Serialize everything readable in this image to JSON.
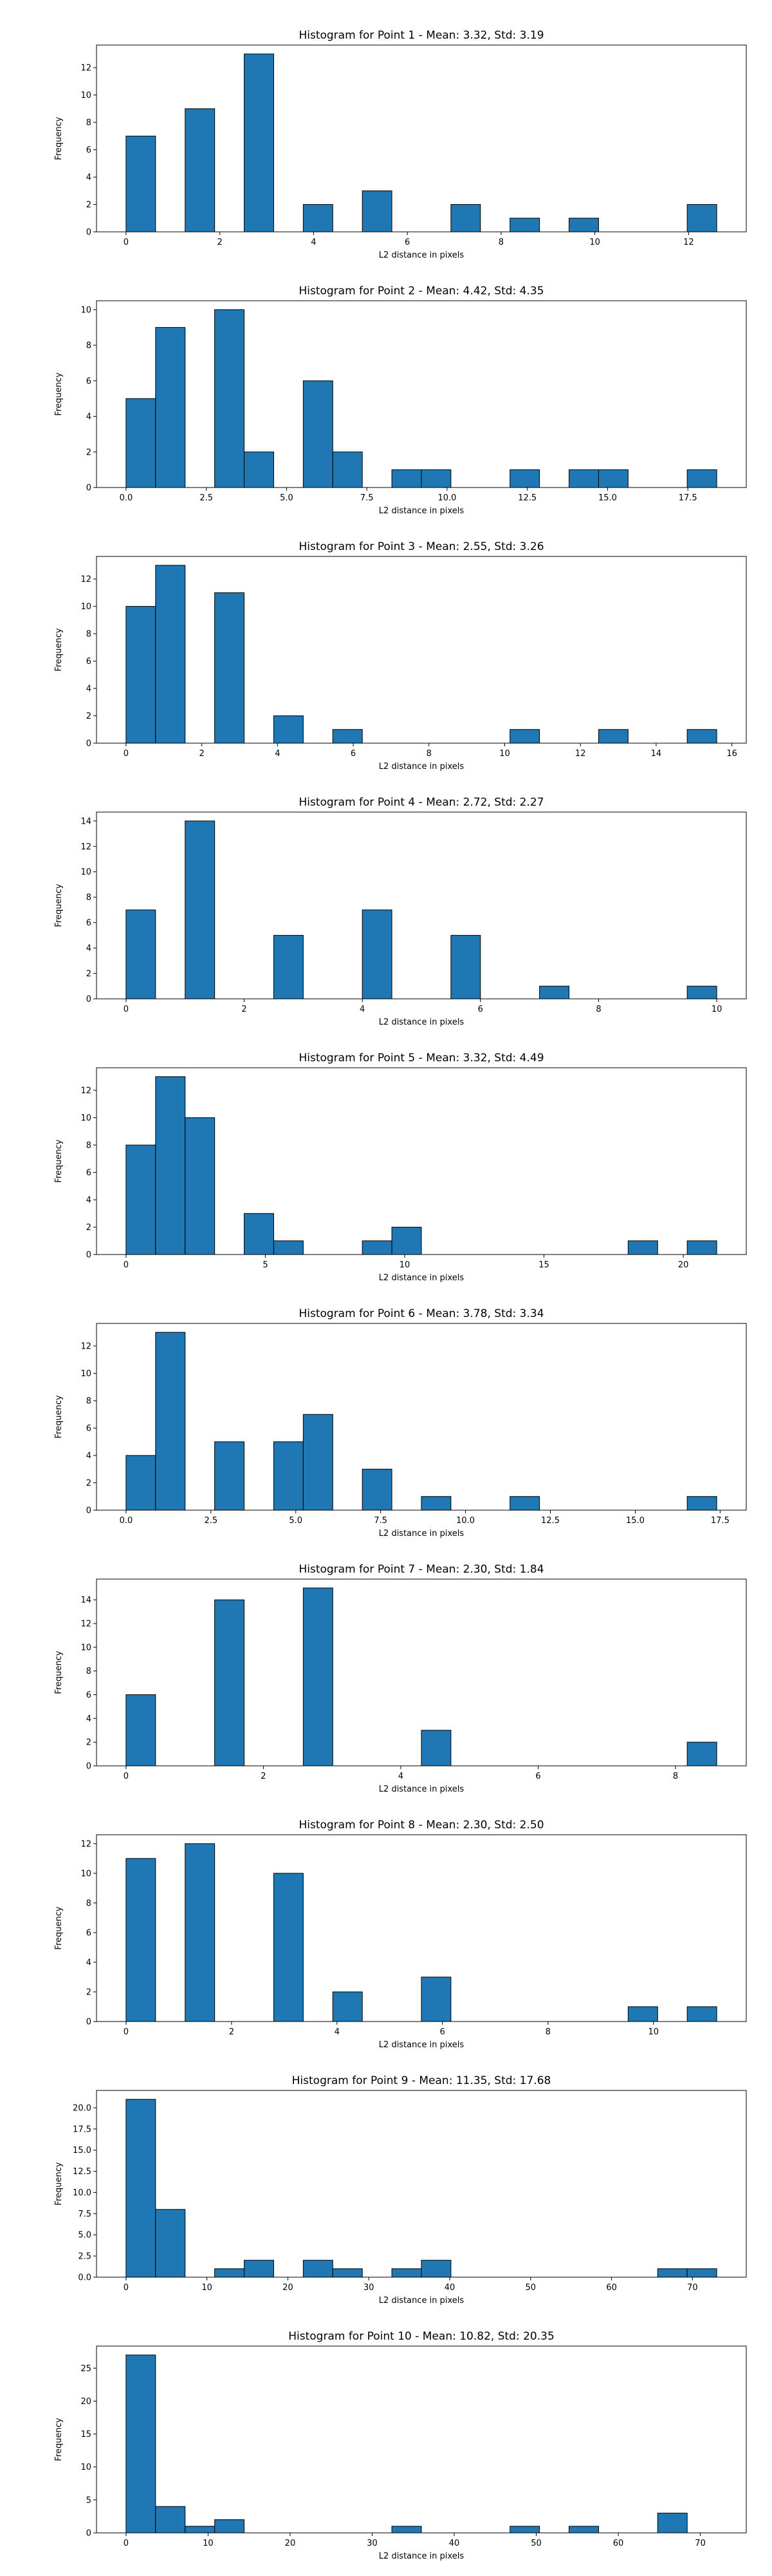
{
  "colors": {
    "bar_fill": "#1f77b4",
    "bar_edge": "#000000",
    "axis": "#000000",
    "background": "#ffffff"
  },
  "chart_data": [
    {
      "type": "bar",
      "title": "Histogram for Point 1 - Mean: 3.32, Std: 3.19",
      "xlabel": "L2 distance in pixels",
      "ylabel": "Frequency",
      "grid": false,
      "xlim": [
        -0.63,
        13.23
      ],
      "ylim": [
        0,
        13.65
      ],
      "xticks": [
        0,
        2,
        4,
        6,
        8,
        10,
        12
      ],
      "xtick_labels": [
        "0",
        "2",
        "4",
        "6",
        "8",
        "10",
        "12"
      ],
      "yticks": [
        0,
        2,
        4,
        6,
        8,
        10,
        12
      ],
      "ytick_labels": [
        "0",
        "2",
        "4",
        "6",
        "8",
        "10",
        "12"
      ],
      "bins": [
        {
          "start": 0.0,
          "end": 0.63,
          "count": 7
        },
        {
          "start": 1.26,
          "end": 1.89,
          "count": 9
        },
        {
          "start": 2.52,
          "end": 3.15,
          "count": 13
        },
        {
          "start": 3.78,
          "end": 4.41,
          "count": 2
        },
        {
          "start": 5.04,
          "end": 5.67,
          "count": 3
        },
        {
          "start": 6.93,
          "end": 7.56,
          "count": 2
        },
        {
          "start": 8.19,
          "end": 8.82,
          "count": 1
        },
        {
          "start": 9.45,
          "end": 10.08,
          "count": 1
        },
        {
          "start": 11.97,
          "end": 12.6,
          "count": 2
        }
      ]
    },
    {
      "type": "bar",
      "title": "Histogram for Point 2 - Mean: 4.42, Std: 4.35",
      "xlabel": "L2 distance in pixels",
      "ylabel": "Frequency",
      "grid": false,
      "xlim": [
        -0.92,
        19.32
      ],
      "ylim": [
        0,
        10.5
      ],
      "xticks": [
        0,
        2.5,
        5,
        7.5,
        10,
        12.5,
        15,
        17.5
      ],
      "xtick_labels": [
        "0.0",
        "2.5",
        "5.0",
        "7.5",
        "10.0",
        "12.5",
        "15.0",
        "17.5"
      ],
      "yticks": [
        0,
        2,
        4,
        6,
        8,
        10
      ],
      "ytick_labels": [
        "0",
        "2",
        "4",
        "6",
        "8",
        "10"
      ],
      "bins": [
        {
          "start": 0.0,
          "end": 0.92,
          "count": 5
        },
        {
          "start": 0.92,
          "end": 1.84,
          "count": 9
        },
        {
          "start": 2.76,
          "end": 3.68,
          "count": 10
        },
        {
          "start": 3.68,
          "end": 4.6,
          "count": 2
        },
        {
          "start": 5.52,
          "end": 6.44,
          "count": 6
        },
        {
          "start": 6.44,
          "end": 7.36,
          "count": 2
        },
        {
          "start": 8.28,
          "end": 9.2,
          "count": 1
        },
        {
          "start": 9.2,
          "end": 10.12,
          "count": 1
        },
        {
          "start": 11.96,
          "end": 12.88,
          "count": 1
        },
        {
          "start": 13.8,
          "end": 14.72,
          "count": 1
        },
        {
          "start": 14.72,
          "end": 15.64,
          "count": 1
        },
        {
          "start": 17.48,
          "end": 18.4,
          "count": 1
        }
      ]
    },
    {
      "type": "bar",
      "title": "Histogram for Point 3 - Mean: 2.55, Std: 3.26",
      "xlabel": "L2 distance in pixels",
      "ylabel": "Frequency",
      "grid": false,
      "xlim": [
        -0.78,
        16.38
      ],
      "ylim": [
        0,
        13.65
      ],
      "xticks": [
        0,
        2,
        4,
        6,
        8,
        10,
        12,
        14,
        16
      ],
      "xtick_labels": [
        "0",
        "2",
        "4",
        "6",
        "8",
        "10",
        "12",
        "14",
        "16"
      ],
      "yticks": [
        0,
        2,
        4,
        6,
        8,
        10,
        12
      ],
      "ytick_labels": [
        "0",
        "2",
        "4",
        "6",
        "8",
        "10",
        "12"
      ],
      "bins": [
        {
          "start": 0.0,
          "end": 0.78,
          "count": 10
        },
        {
          "start": 0.78,
          "end": 1.56,
          "count": 13
        },
        {
          "start": 2.34,
          "end": 3.12,
          "count": 11
        },
        {
          "start": 3.9,
          "end": 4.68,
          "count": 2
        },
        {
          "start": 5.46,
          "end": 6.24,
          "count": 1
        },
        {
          "start": 10.14,
          "end": 10.92,
          "count": 1
        },
        {
          "start": 12.48,
          "end": 13.26,
          "count": 1
        },
        {
          "start": 14.82,
          "end": 15.6,
          "count": 1
        }
      ]
    },
    {
      "type": "bar",
      "title": "Histogram for Point 4 - Mean: 2.72, Std: 2.27",
      "xlabel": "L2 distance in pixels",
      "ylabel": "Frequency",
      "grid": false,
      "xlim": [
        -0.5,
        10.5
      ],
      "ylim": [
        0,
        14.7
      ],
      "xticks": [
        0,
        2,
        4,
        6,
        8,
        10
      ],
      "xtick_labels": [
        "0",
        "2",
        "4",
        "6",
        "8",
        "10"
      ],
      "yticks": [
        0,
        2,
        4,
        6,
        8,
        10,
        12,
        14
      ],
      "ytick_labels": [
        "0",
        "2",
        "4",
        "6",
        "8",
        "10",
        "12",
        "14"
      ],
      "bins": [
        {
          "start": 0.0,
          "end": 0.5,
          "count": 7
        },
        {
          "start": 1.0,
          "end": 1.5,
          "count": 14
        },
        {
          "start": 2.5,
          "end": 3.0,
          "count": 5
        },
        {
          "start": 4.0,
          "end": 4.5,
          "count": 7
        },
        {
          "start": 5.5,
          "end": 6.0,
          "count": 5
        },
        {
          "start": 7.0,
          "end": 7.5,
          "count": 1
        },
        {
          "start": 9.5,
          "end": 10.0,
          "count": 1
        }
      ]
    },
    {
      "type": "bar",
      "title": "Histogram for Point 5 - Mean: 3.32, Std: 4.49",
      "xlabel": "L2 distance in pixels",
      "ylabel": "Frequency",
      "grid": false,
      "xlim": [
        -1.06,
        22.26
      ],
      "ylim": [
        0,
        13.65
      ],
      "xticks": [
        0,
        5,
        10,
        15,
        20
      ],
      "xtick_labels": [
        "0",
        "5",
        "10",
        "15",
        "20"
      ],
      "yticks": [
        0,
        2,
        4,
        6,
        8,
        10,
        12
      ],
      "ytick_labels": [
        "0",
        "2",
        "4",
        "6",
        "8",
        "10",
        "12"
      ],
      "bins": [
        {
          "start": 0.0,
          "end": 1.06,
          "count": 8
        },
        {
          "start": 1.06,
          "end": 2.12,
          "count": 13
        },
        {
          "start": 2.12,
          "end": 3.18,
          "count": 10
        },
        {
          "start": 4.24,
          "end": 5.3,
          "count": 3
        },
        {
          "start": 5.3,
          "end": 6.36,
          "count": 1
        },
        {
          "start": 8.48,
          "end": 9.54,
          "count": 1
        },
        {
          "start": 9.54,
          "end": 10.6,
          "count": 2
        },
        {
          "start": 18.02,
          "end": 19.08,
          "count": 1
        },
        {
          "start": 20.14,
          "end": 21.2,
          "count": 1
        }
      ]
    },
    {
      "type": "bar",
      "title": "Histogram for Point 6 - Mean: 3.78, Std: 3.34",
      "xlabel": "L2 distance in pixels",
      "ylabel": "Frequency",
      "grid": false,
      "xlim": [
        -0.87,
        18.27
      ],
      "ylim": [
        0,
        13.65
      ],
      "xticks": [
        0,
        2.5,
        5,
        7.5,
        10,
        12.5,
        15,
        17.5
      ],
      "xtick_labels": [
        "0.0",
        "2.5",
        "5.0",
        "7.5",
        "10.0",
        "12.5",
        "15.0",
        "17.5"
      ],
      "yticks": [
        0,
        2,
        4,
        6,
        8,
        10,
        12
      ],
      "ytick_labels": [
        "0",
        "2",
        "4",
        "6",
        "8",
        "10",
        "12"
      ],
      "bins": [
        {
          "start": 0.0,
          "end": 0.87,
          "count": 4
        },
        {
          "start": 0.87,
          "end": 1.74,
          "count": 13
        },
        {
          "start": 2.61,
          "end": 3.48,
          "count": 5
        },
        {
          "start": 4.35,
          "end": 5.22,
          "count": 5
        },
        {
          "start": 5.22,
          "end": 6.09,
          "count": 7
        },
        {
          "start": 6.96,
          "end": 7.83,
          "count": 3
        },
        {
          "start": 8.7,
          "end": 9.57,
          "count": 1
        },
        {
          "start": 11.31,
          "end": 12.18,
          "count": 1
        },
        {
          "start": 16.53,
          "end": 17.4,
          "count": 1
        }
      ]
    },
    {
      "type": "bar",
      "title": "Histogram for Point 7 - Mean: 2.30, Std: 1.84",
      "xlabel": "L2 distance in pixels",
      "ylabel": "Frequency",
      "grid": false,
      "xlim": [
        -0.43,
        9.03
      ],
      "ylim": [
        0,
        15.75
      ],
      "xticks": [
        0,
        2,
        4,
        6,
        8
      ],
      "xtick_labels": [
        "0",
        "2",
        "4",
        "6",
        "8"
      ],
      "yticks": [
        0,
        2,
        4,
        6,
        8,
        10,
        12,
        14
      ],
      "ytick_labels": [
        "0",
        "2",
        "4",
        "6",
        "8",
        "10",
        "12",
        "14"
      ],
      "bins": [
        {
          "start": 0.0,
          "end": 0.43,
          "count": 6
        },
        {
          "start": 1.29,
          "end": 1.72,
          "count": 14
        },
        {
          "start": 2.58,
          "end": 3.01,
          "count": 15
        },
        {
          "start": 4.3,
          "end": 4.73,
          "count": 3
        },
        {
          "start": 8.17,
          "end": 8.6,
          "count": 2
        }
      ]
    },
    {
      "type": "bar",
      "title": "Histogram for Point 8 - Mean: 2.30, Std: 2.50",
      "xlabel": "L2 distance in pixels",
      "ylabel": "Frequency",
      "grid": false,
      "xlim": [
        -0.56,
        11.76
      ],
      "ylim": [
        0,
        12.6
      ],
      "xticks": [
        0,
        2,
        4,
        6,
        8,
        10
      ],
      "xtick_labels": [
        "0",
        "2",
        "4",
        "6",
        "8",
        "10"
      ],
      "yticks": [
        0,
        2,
        4,
        6,
        8,
        10,
        12
      ],
      "ytick_labels": [
        "0",
        "2",
        "4",
        "6",
        "8",
        "10",
        "12"
      ],
      "bins": [
        {
          "start": 0.0,
          "end": 0.56,
          "count": 11
        },
        {
          "start": 1.12,
          "end": 1.68,
          "count": 12
        },
        {
          "start": 2.8,
          "end": 3.36,
          "count": 10
        },
        {
          "start": 3.92,
          "end": 4.48,
          "count": 2
        },
        {
          "start": 5.6,
          "end": 6.16,
          "count": 3
        },
        {
          "start": 9.52,
          "end": 10.08,
          "count": 1
        },
        {
          "start": 10.64,
          "end": 11.2,
          "count": 1
        }
      ]
    },
    {
      "type": "bar",
      "title": "Histogram for Point 9 - Mean: 11.35, Std: 17.68",
      "xlabel": "L2 distance in pixels",
      "ylabel": "Frequency",
      "grid": false,
      "xlim": [
        -3.65,
        76.65
      ],
      "ylim": [
        0,
        22.05
      ],
      "xticks": [
        0,
        10,
        20,
        30,
        40,
        50,
        60,
        70
      ],
      "xtick_labels": [
        "0",
        "10",
        "20",
        "30",
        "40",
        "50",
        "60",
        "70"
      ],
      "yticks": [
        0,
        2.5,
        5,
        7.5,
        10,
        12.5,
        15,
        17.5,
        20
      ],
      "ytick_labels": [
        "0.0",
        "2.5",
        "5.0",
        "7.5",
        "10.0",
        "12.5",
        "15.0",
        "17.5",
        "20.0"
      ],
      "bins": [
        {
          "start": 0.0,
          "end": 3.65,
          "count": 21
        },
        {
          "start": 3.65,
          "end": 7.3,
          "count": 8
        },
        {
          "start": 10.95,
          "end": 14.6,
          "count": 1
        },
        {
          "start": 14.6,
          "end": 18.25,
          "count": 2
        },
        {
          "start": 21.9,
          "end": 25.55,
          "count": 2
        },
        {
          "start": 25.55,
          "end": 29.2,
          "count": 1
        },
        {
          "start": 32.85,
          "end": 36.5,
          "count": 1
        },
        {
          "start": 36.5,
          "end": 40.15,
          "count": 2
        },
        {
          "start": 65.7,
          "end": 69.35,
          "count": 1
        },
        {
          "start": 69.35,
          "end": 73.0,
          "count": 1
        }
      ]
    },
    {
      "type": "bar",
      "title": "Histogram for Point 10 - Mean: 10.82, Std: 20.35",
      "xlabel": "L2 distance in pixels",
      "ylabel": "Frequency",
      "grid": false,
      "xlim": [
        -3.6,
        75.6
      ],
      "ylim": [
        0,
        28.35
      ],
      "xticks": [
        0,
        10,
        20,
        30,
        40,
        50,
        60,
        70
      ],
      "xtick_labels": [
        "0",
        "10",
        "20",
        "30",
        "40",
        "50",
        "60",
        "70"
      ],
      "yticks": [
        0,
        5,
        10,
        15,
        20,
        25
      ],
      "ytick_labels": [
        "0",
        "5",
        "10",
        "15",
        "20",
        "25"
      ],
      "bins": [
        {
          "start": 0.0,
          "end": 3.6,
          "count": 27
        },
        {
          "start": 3.6,
          "end": 7.2,
          "count": 4
        },
        {
          "start": 7.2,
          "end": 10.8,
          "count": 1
        },
        {
          "start": 10.8,
          "end": 14.4,
          "count": 2
        },
        {
          "start": 32.4,
          "end": 36.0,
          "count": 1
        },
        {
          "start": 46.8,
          "end": 50.4,
          "count": 1
        },
        {
          "start": 54.0,
          "end": 57.6,
          "count": 1
        },
        {
          "start": 64.8,
          "end": 68.4,
          "count": 3
        }
      ]
    }
  ]
}
